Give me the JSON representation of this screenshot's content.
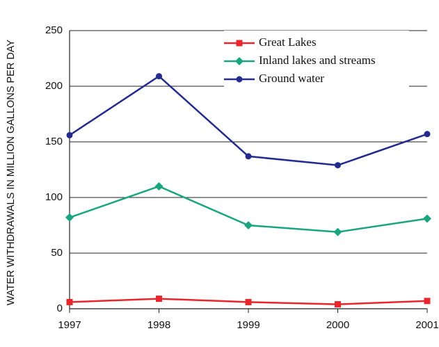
{
  "chart_data": {
    "type": "line",
    "y_label": "WATER WITHDRAWALS IN MILLION  GALLONS PER DAY",
    "x": [
      1997,
      1998,
      1999,
      2000,
      2001
    ],
    "xlim": [
      1997,
      2001
    ],
    "xticks": [
      1997,
      1998,
      1999,
      2000,
      2001
    ],
    "ylim": [
      0,
      250
    ],
    "yticks": [
      0,
      50,
      100,
      150,
      200,
      250
    ],
    "grid": true,
    "legend": "top",
    "series": [
      {
        "name": "Great Lakes",
        "color": "#e8262b",
        "marker": "square",
        "values": [
          6,
          9,
          6,
          4,
          7
        ]
      },
      {
        "name": "Inland lakes and streams",
        "color": "#1aa57e",
        "marker": "diamond",
        "values": [
          82,
          110,
          75,
          69,
          81
        ]
      },
      {
        "name": "Ground water",
        "color": "#232c8c",
        "marker": "circle",
        "values": [
          156,
          209,
          137,
          129,
          157
        ]
      }
    ]
  }
}
